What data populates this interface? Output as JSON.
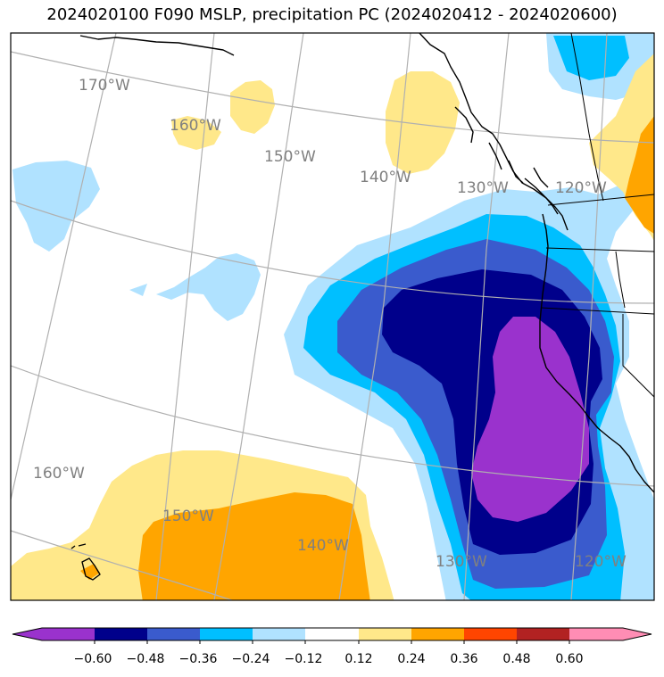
{
  "title": "2024020100 F090 MSLP, precipitation PC (2024020412 - 2024020600)",
  "colors": {
    "v_neg_060": "#9a32cd",
    "v_neg_048": "#00008b",
    "v_neg_036": "#3a5bcd",
    "v_neg_024": "#00bfff",
    "v_neg_012": "#b0e2ff",
    "v_neutral": "#ffffff",
    "v_pos_012": "#ffe88a",
    "v_pos_024": "#ffa500",
    "v_pos_036": "#ff4500",
    "v_pos_048": "#b22222",
    "v_pos_060": "#ff8db4",
    "graticule": "#b0b0b0",
    "coast": "#000000"
  },
  "lon_labels": {
    "top_170": "170°W",
    "top_160": "160°W",
    "top_150": "150°W",
    "top_140": "140°W",
    "top_130": "130°W",
    "top_120": "120°W",
    "bot_160": "160°W",
    "bot_150": "150°W",
    "bot_140": "140°W",
    "bot_130": "130°W",
    "bot_120": "120°W"
  },
  "colorbar": {
    "ticks": [
      "−0.60",
      "−0.48",
      "−0.36",
      "−0.24",
      "−0.12",
      "0.12",
      "0.24",
      "0.36",
      "0.48",
      "0.60"
    ]
  }
}
